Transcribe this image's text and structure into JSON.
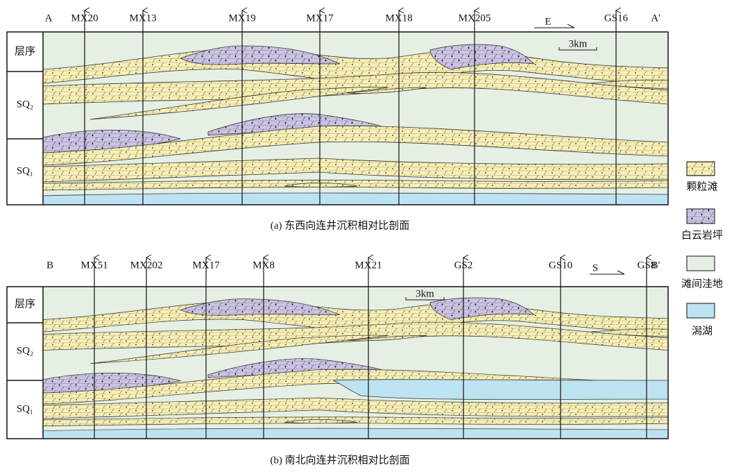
{
  "panels": [
    {
      "start": "A",
      "end": "A'",
      "wells": [
        "MX20",
        "MX13",
        "MX19",
        "MX17",
        "MX18",
        "MX205",
        "GS16"
      ],
      "direction": "E",
      "scale": "3km",
      "column_header": "层序",
      "sequences": [
        "SQ₂",
        "SQ₁"
      ],
      "caption": "(a) 东西向连井沉积相对比剖面"
    },
    {
      "start": "B",
      "end": "B'",
      "wells": [
        "MX51",
        "MX202",
        "MX17",
        "MX8",
        "MX21",
        "GS2",
        "GS10",
        "GS8"
      ],
      "direction": "S",
      "scale": "3km",
      "column_header": "层序",
      "sequences": [
        "SQ₂",
        "SQ₁"
      ],
      "caption": "(b) 南北向连井沉积相对比剖面"
    }
  ],
  "legend": [
    "颗粒滩",
    "白云岩坪",
    "滩间洼地",
    "潟湖"
  ]
}
